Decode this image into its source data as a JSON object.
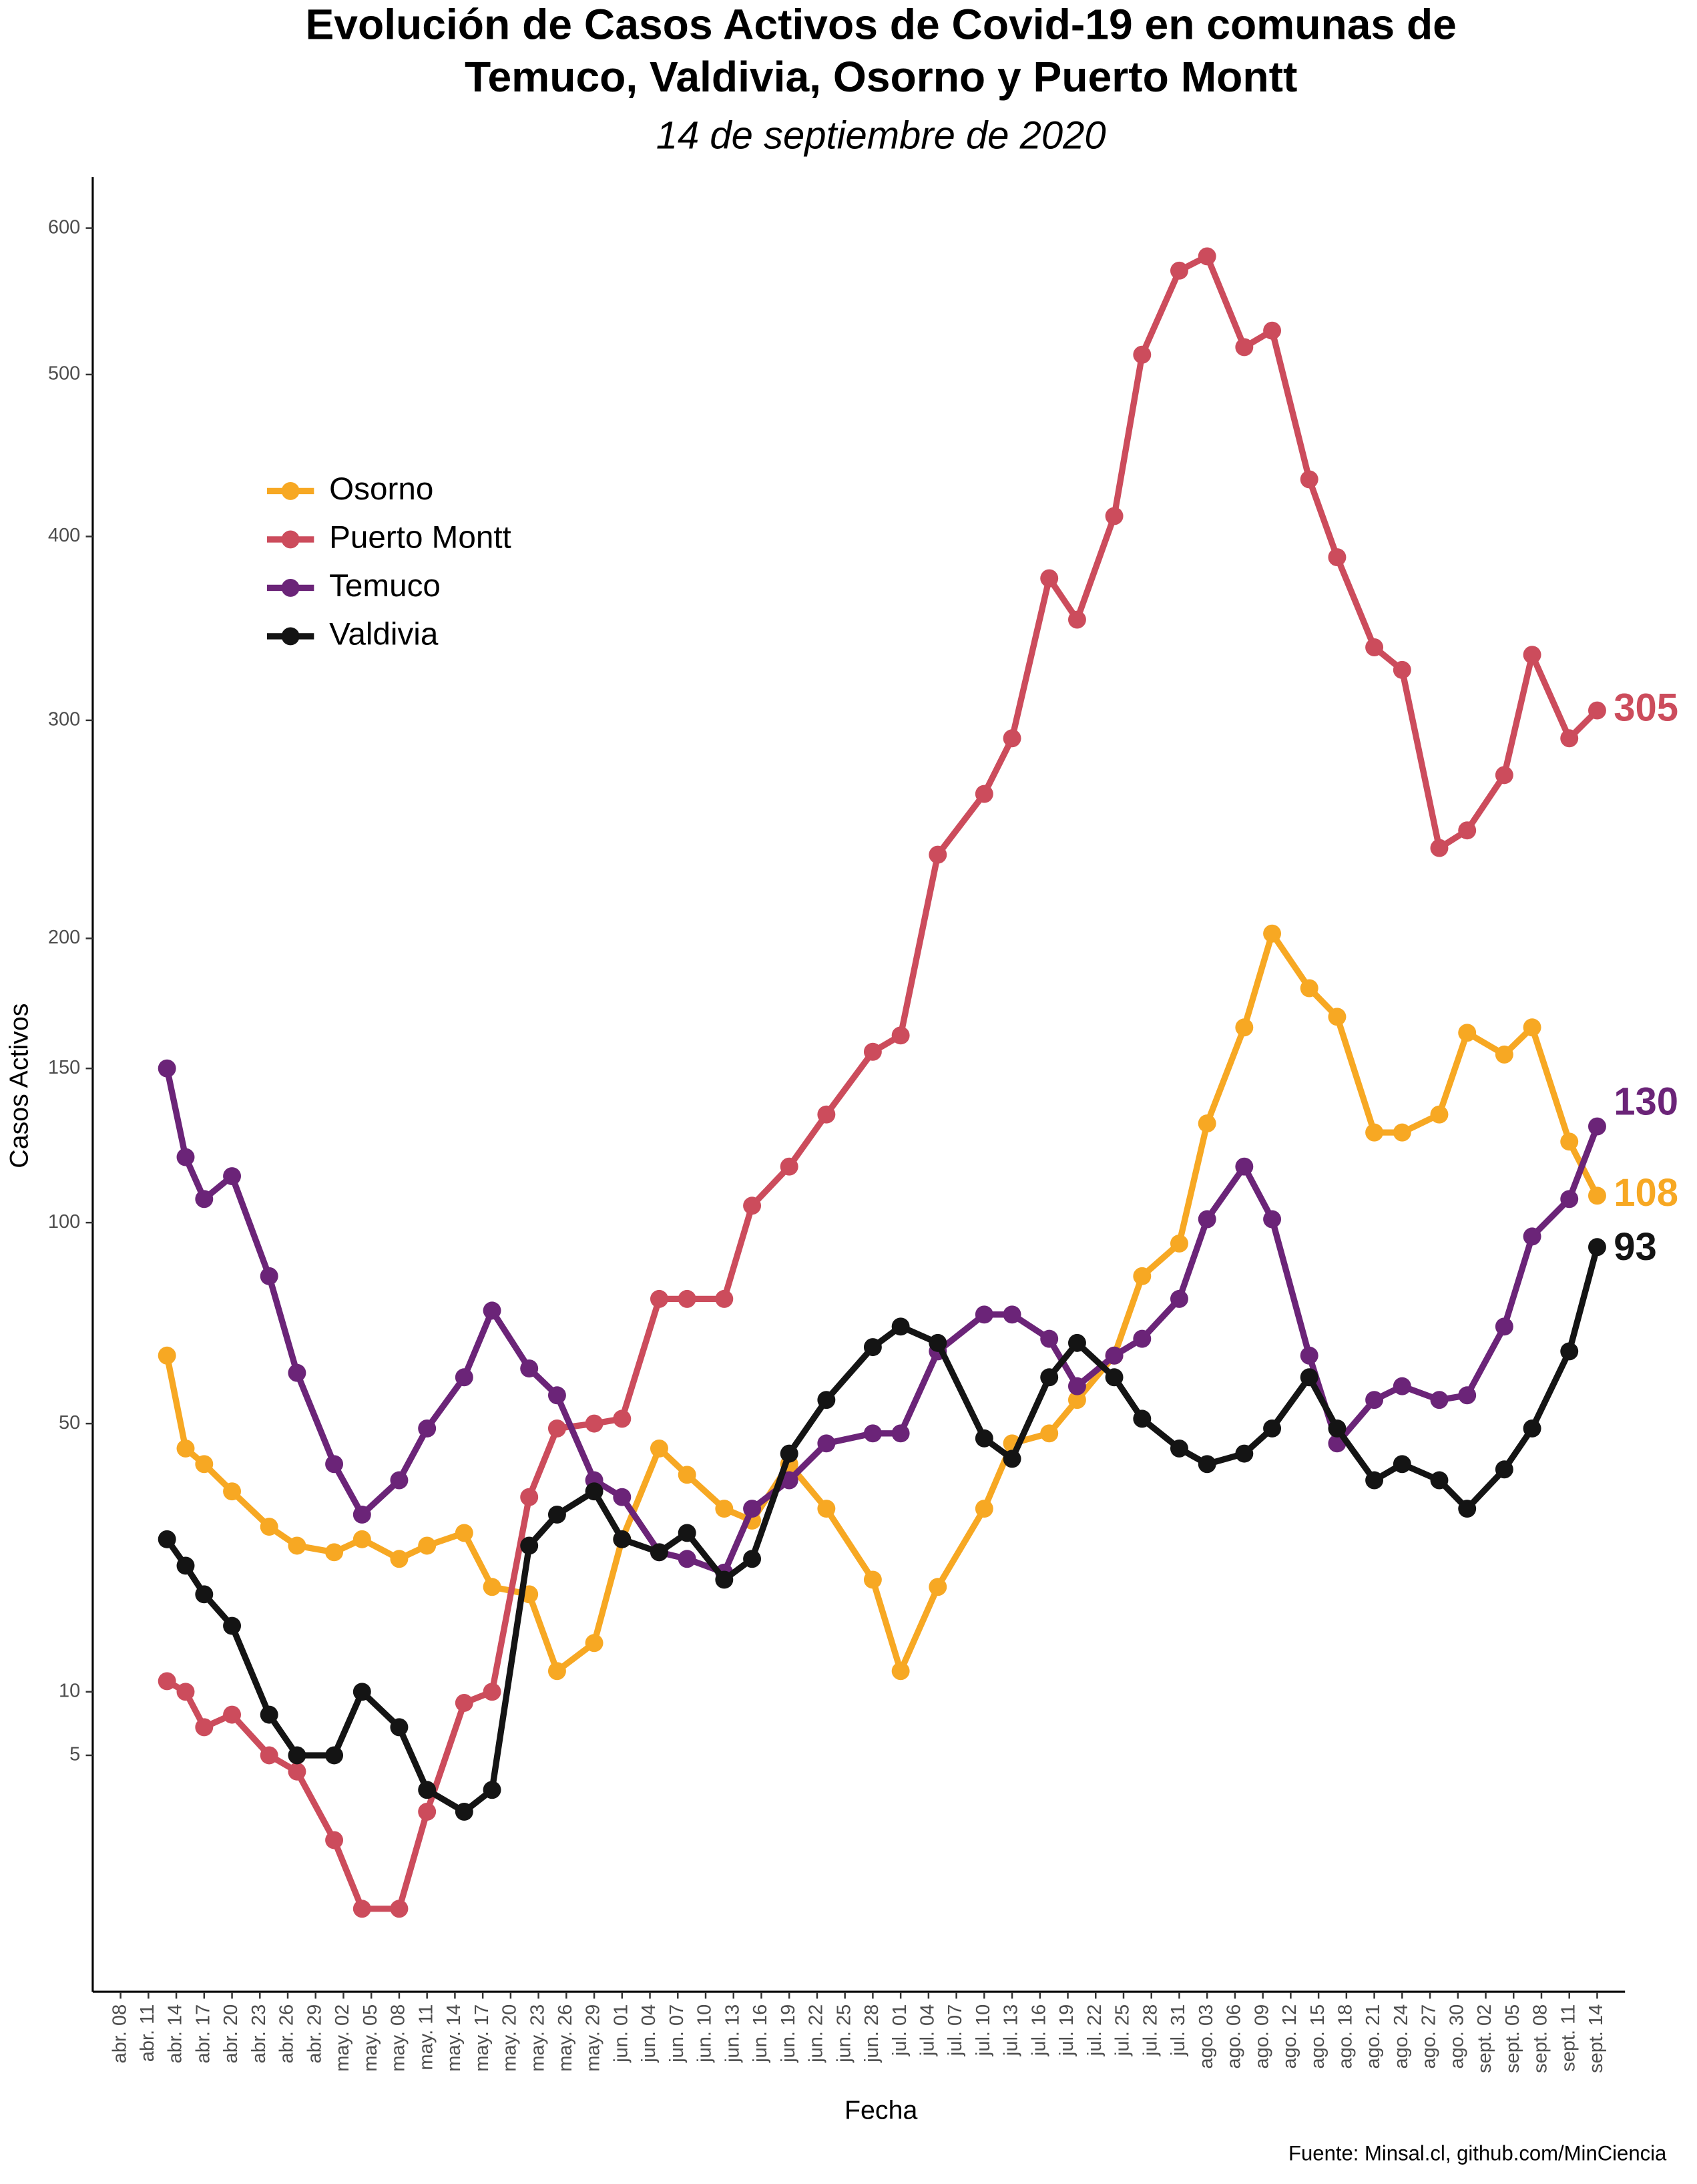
{
  "chart_data": {
    "type": "line",
    "title": [
      "Evolución de Casos Activos de Covid-19 en comunas de",
      "Temuco, Valdivia, Osorno y Puerto Montt"
    ],
    "subtitle": "14 de septiembre de 2020",
    "x_label": "Fecha",
    "y_label": "Casos Activos",
    "source": "Fuente: Minsal.cl, github.com/MinCiencia",
    "yscale": "sqrt",
    "ylim": [
      0,
      637
    ],
    "yticks": [
      5,
      10,
      50,
      100,
      150,
      200,
      300,
      400,
      500,
      600
    ],
    "xlim": [
      "2020-04-05",
      "2020-09-17"
    ],
    "xticks": [
      {
        "value": "2020-04-08",
        "label": "abr. 08"
      },
      {
        "value": "2020-04-11",
        "label": "abr. 11"
      },
      {
        "value": "2020-04-14",
        "label": "abr. 14"
      },
      {
        "value": "2020-04-17",
        "label": "abr. 17"
      },
      {
        "value": "2020-04-20",
        "label": "abr. 20"
      },
      {
        "value": "2020-04-23",
        "label": "abr. 23"
      },
      {
        "value": "2020-04-26",
        "label": "abr. 26"
      },
      {
        "value": "2020-04-29",
        "label": "abr. 29"
      },
      {
        "value": "2020-05-02",
        "label": "may. 02"
      },
      {
        "value": "2020-05-05",
        "label": "may. 05"
      },
      {
        "value": "2020-05-08",
        "label": "may. 08"
      },
      {
        "value": "2020-05-11",
        "label": "may. 11"
      },
      {
        "value": "2020-05-14",
        "label": "may. 14"
      },
      {
        "value": "2020-05-17",
        "label": "may. 17"
      },
      {
        "value": "2020-05-20",
        "label": "may. 20"
      },
      {
        "value": "2020-05-23",
        "label": "may. 23"
      },
      {
        "value": "2020-05-26",
        "label": "may. 26"
      },
      {
        "value": "2020-05-29",
        "label": "may. 29"
      },
      {
        "value": "2020-06-01",
        "label": "jun. 01"
      },
      {
        "value": "2020-06-04",
        "label": "jun. 04"
      },
      {
        "value": "2020-06-07",
        "label": "jun. 07"
      },
      {
        "value": "2020-06-10",
        "label": "jun. 10"
      },
      {
        "value": "2020-06-13",
        "label": "jun. 13"
      },
      {
        "value": "2020-06-16",
        "label": "jun. 16"
      },
      {
        "value": "2020-06-19",
        "label": "jun. 19"
      },
      {
        "value": "2020-06-22",
        "label": "jun. 22"
      },
      {
        "value": "2020-06-25",
        "label": "jun. 25"
      },
      {
        "value": "2020-06-28",
        "label": "jun. 28"
      },
      {
        "value": "2020-07-01",
        "label": "jul. 01"
      },
      {
        "value": "2020-07-04",
        "label": "jul. 04"
      },
      {
        "value": "2020-07-07",
        "label": "jul. 07"
      },
      {
        "value": "2020-07-10",
        "label": "jul. 10"
      },
      {
        "value": "2020-07-13",
        "label": "jul. 13"
      },
      {
        "value": "2020-07-16",
        "label": "jul. 16"
      },
      {
        "value": "2020-07-19",
        "label": "jul. 19"
      },
      {
        "value": "2020-07-22",
        "label": "jul. 22"
      },
      {
        "value": "2020-07-25",
        "label": "jul. 25"
      },
      {
        "value": "2020-07-28",
        "label": "jul. 28"
      },
      {
        "value": "2020-07-31",
        "label": "jul. 31"
      },
      {
        "value": "2020-08-03",
        "label": "ago. 03"
      },
      {
        "value": "2020-08-06",
        "label": "ago. 06"
      },
      {
        "value": "2020-08-09",
        "label": "ago. 09"
      },
      {
        "value": "2020-08-12",
        "label": "ago. 12"
      },
      {
        "value": "2020-08-15",
        "label": "ago. 15"
      },
      {
        "value": "2020-08-18",
        "label": "ago. 18"
      },
      {
        "value": "2020-08-21",
        "label": "ago. 21"
      },
      {
        "value": "2020-08-24",
        "label": "ago. 24"
      },
      {
        "value": "2020-08-27",
        "label": "ago. 27"
      },
      {
        "value": "2020-08-30",
        "label": "ago. 30"
      },
      {
        "value": "2020-09-02",
        "label": "sept. 02"
      },
      {
        "value": "2020-09-05",
        "label": "sept. 05"
      },
      {
        "value": "2020-09-08",
        "label": "sept. 08"
      },
      {
        "value": "2020-09-11",
        "label": "sept. 11"
      },
      {
        "value": "2020-09-14",
        "label": "sept. 14"
      }
    ],
    "x": [
      "2020-04-13",
      "2020-04-15",
      "2020-04-17",
      "2020-04-20",
      "2020-04-24",
      "2020-04-27",
      "2020-05-01",
      "2020-05-04",
      "2020-05-08",
      "2020-05-11",
      "2020-05-15",
      "2020-05-18",
      "2020-05-22",
      "2020-05-25",
      "2020-05-29",
      "2020-06-01",
      "2020-06-05",
      "2020-06-08",
      "2020-06-12",
      "2020-06-15",
      "2020-06-19",
      "2020-06-23",
      "2020-06-28",
      "2020-07-01",
      "2020-07-05",
      "2020-07-10",
      "2020-07-13",
      "2020-07-17",
      "2020-07-20",
      "2020-07-24",
      "2020-07-27",
      "2020-07-31",
      "2020-08-03",
      "2020-08-07",
      "2020-08-10",
      "2020-08-14",
      "2020-08-17",
      "2020-08-21",
      "2020-08-24",
      "2020-08-28",
      "2020-08-31",
      "2020-09-04",
      "2020-09-07",
      "2020-09-11",
      "2020-09-14"
    ],
    "series": [
      {
        "name": "Osorno",
        "color": "#f7a823",
        "values": [
          65,
          45,
          42,
          37,
          31,
          28,
          27,
          29,
          26,
          28,
          30,
          22,
          21,
          12,
          15,
          29,
          45,
          40,
          34,
          32,
          42,
          34,
          23,
          12,
          22,
          34,
          46,
          48,
          55,
          65,
          85,
          94,
          131,
          165,
          202,
          180,
          169,
          128,
          128,
          134,
          163,
          155,
          165,
          125,
          108
        ]
      },
      {
        "name": "Puerto Montt",
        "color": "#cc4c5c",
        "values": [
          11,
          10,
          7,
          8,
          5,
          4,
          1,
          0,
          0,
          2,
          9,
          10,
          36,
          49,
          50,
          51,
          79,
          79,
          79,
          105,
          117,
          134,
          156,
          162,
          236,
          264,
          291,
          376,
          353,
          412,
          513,
          570,
          580,
          518,
          529,
          434,
          388,
          338,
          326,
          239,
          247,
          273,
          334,
          291,
          305
        ]
      },
      {
        "name": "Temuco",
        "color": "#6b2478",
        "values": [
          150,
          120,
          107,
          114,
          85,
          61,
          42,
          33,
          39,
          49,
          60,
          76,
          62,
          56,
          39,
          36,
          27,
          26,
          24,
          34,
          39,
          46,
          48,
          48,
          66,
          75,
          75,
          69,
          58,
          65,
          69,
          79,
          101,
          117,
          101,
          65,
          46,
          55,
          58,
          55,
          56,
          72,
          96,
          107,
          130
        ]
      },
      {
        "name": "Valdivia",
        "color": "#141414",
        "values": [
          29,
          25,
          21,
          17,
          8,
          5,
          5,
          10,
          7,
          3,
          2,
          3,
          28,
          33,
          37,
          29,
          27,
          30,
          23,
          26,
          44,
          55,
          67,
          72,
          68,
          47,
          43,
          60,
          68,
          60,
          51,
          45,
          42,
          44,
          49,
          60,
          49,
          39,
          42,
          39,
          34,
          41,
          49,
          66,
          93
        ]
      }
    ]
  }
}
